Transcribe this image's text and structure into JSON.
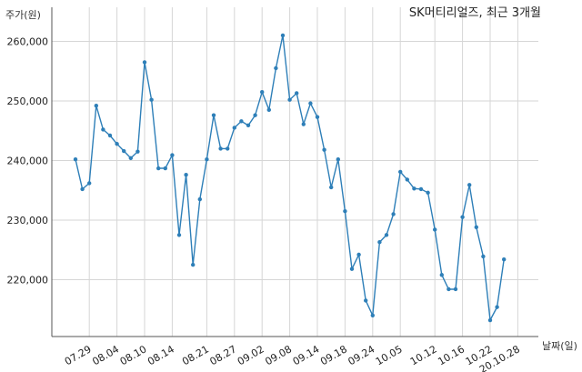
{
  "chart_data": {
    "type": "line",
    "title": "SK머티리얼즈, 최근 3개월",
    "ylabel": "주가(원)",
    "xlabel": "날짜(일)",
    "ylim": [
      210000,
      262000
    ],
    "y_ticks": [
      220000,
      230000,
      240000,
      250000,
      260000
    ],
    "y_tick_labels": [
      "220,000",
      "230,000",
      "240,000",
      "250,000",
      "260,000"
    ],
    "x_ticks": [
      "07.29",
      "08.04",
      "08.10",
      "08.14",
      "08.21",
      "08.27",
      "09.02",
      "09.08",
      "09.14",
      "09.18",
      "09.24",
      "10.05",
      "10.12",
      "10.16",
      "10.22",
      "20.10.28"
    ],
    "x_tick_index": [
      2,
      6,
      10,
      14,
      19,
      23,
      27,
      31,
      35,
      39,
      43,
      47,
      52,
      56,
      60,
      64
    ],
    "grid": true,
    "color": "#2e7fb8",
    "series": [
      {
        "values": [
          240200,
          235200,
          236200,
          249200,
          245200,
          244200,
          242800,
          241600,
          240400,
          241500,
          256500,
          250200,
          238700,
          238700,
          240900,
          227500,
          237600,
          222500,
          233500,
          240200,
          247600,
          242000,
          242000,
          245500,
          246600,
          245900,
          247600,
          251500,
          248500,
          255500,
          261000,
          250200,
          251300,
          246100,
          249600,
          247300,
          241800,
          235500,
          240200,
          231500,
          221800,
          224200,
          216500,
          214000,
          226300,
          227500,
          231000,
          238100,
          236800,
          235300,
          235200,
          234600,
          228400,
          220800,
          218400,
          218400,
          230500,
          235900,
          228800,
          223900,
          213200,
          215400,
          223400
        ]
      }
    ]
  }
}
